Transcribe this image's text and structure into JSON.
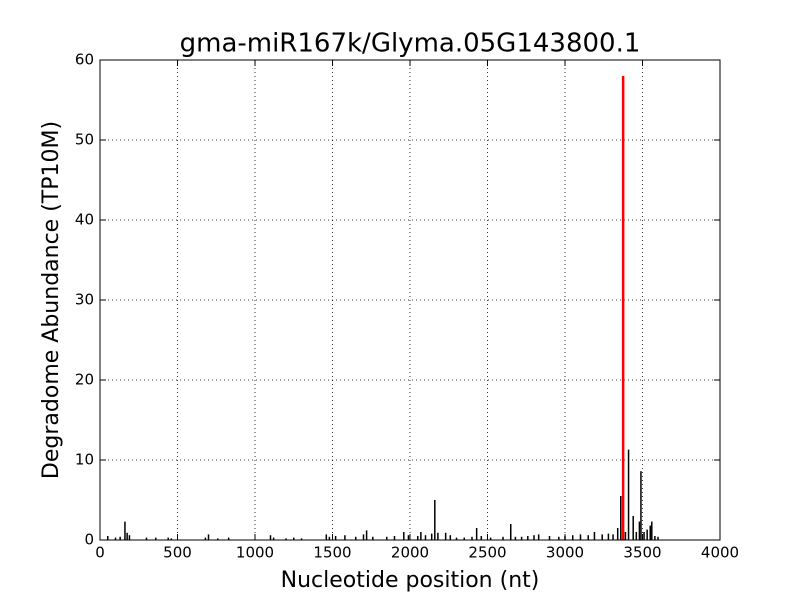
{
  "chart_data": {
    "type": "stem",
    "title": "gma-miR167k/Glyma.05G143800.1",
    "x_label": "Nucleotide position (nt)",
    "y_label": "Degradome Abundance (TP10M)",
    "xlim": [
      0,
      4000
    ],
    "xticks": [
      0,
      500,
      1000,
      1500,
      2000,
      2500,
      3000,
      3500,
      4000
    ],
    "ylim": [
      0,
      60
    ],
    "yticks": [
      0,
      10,
      20,
      30,
      40,
      50,
      60
    ],
    "grid": true,
    "series": [
      {
        "color": "#000000",
        "x": [
          50,
          100,
          130,
          161,
          175,
          190,
          300,
          360,
          440,
          460,
          680,
          700,
          760,
          830,
          1100,
          1120,
          1200,
          1250,
          1300,
          1460,
          1480,
          1520,
          1580,
          1650,
          1700,
          1720,
          1760,
          1850,
          1900,
          1960,
          1990,
          2050,
          2070,
          2100,
          2140,
          2160,
          2180,
          2230,
          2260,
          2300,
          2350,
          2400,
          2430,
          2460,
          2520,
          2600,
          2650,
          2680,
          2720,
          2760,
          2800,
          2830,
          2900,
          2960,
          3000,
          3050,
          3100,
          3150,
          3190,
          3240,
          3280,
          3310,
          3340,
          3360,
          3390,
          3410,
          3440,
          3460,
          3480,
          3490,
          3510,
          3530,
          3550,
          3560,
          3580,
          3600
        ],
        "values": [
          0.5,
          0.3,
          0.4,
          2.3,
          0.9,
          0.6,
          0.3,
          0.3,
          0.3,
          0.2,
          0.3,
          0.7,
          0.2,
          0.3,
          0.6,
          0.3,
          0.2,
          0.3,
          0.2,
          0.7,
          0.4,
          0.5,
          0.6,
          0.4,
          0.7,
          1.2,
          0.4,
          0.4,
          0.5,
          1.0,
          0.6,
          0.5,
          1.0,
          0.6,
          0.8,
          5.0,
          0.9,
          0.9,
          0.6,
          0.3,
          0.3,
          0.4,
          1.5,
          0.5,
          0.3,
          0.4,
          2.0,
          0.4,
          0.4,
          0.5,
          0.6,
          0.7,
          0.5,
          0.4,
          0.5,
          0.6,
          0.7,
          0.6,
          1.0,
          0.7,
          0.8,
          0.7,
          1.5,
          5.5,
          1.0,
          11.3,
          3.0,
          1.0,
          2.3,
          8.6,
          1.0,
          1.3,
          1.8,
          2.3,
          0.5,
          0.4
        ]
      },
      {
        "color": "#ff0000",
        "x": [
          3375
        ],
        "values": [
          58
        ]
      }
    ]
  }
}
